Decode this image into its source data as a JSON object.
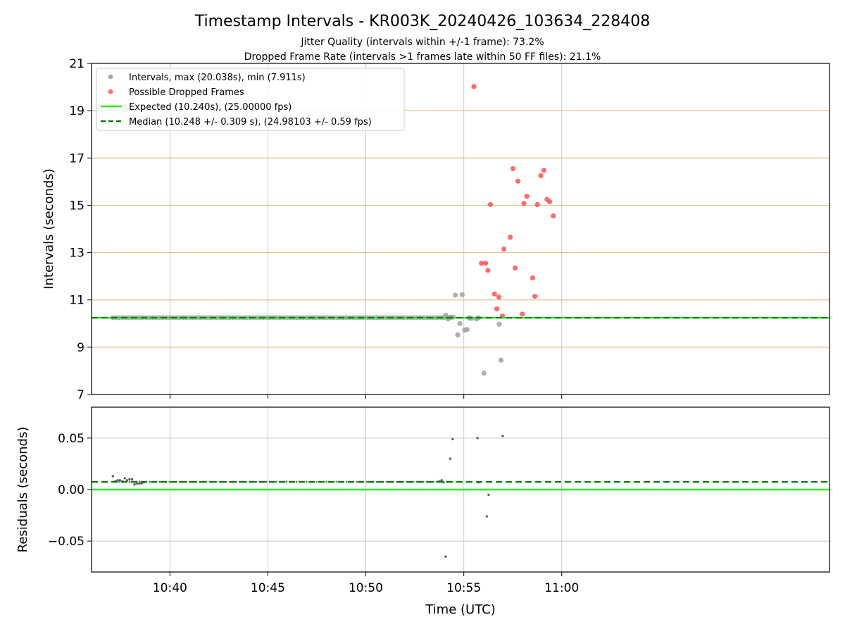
{
  "title": "Timestamp Intervals - KR003K_20240426_103634_228408",
  "subtitle_line1": "Jitter Quality (intervals within +/-1 frame): 73.2%",
  "subtitle_line2": "Dropped Frame Rate (intervals >1 frames late within 50 FF files): 21.1%",
  "colors": {
    "intervals": "#a0a0a0",
    "dropped": "#ff5a5a",
    "expected": "#22ee22",
    "median": "#007a00",
    "hgrid_top": "#d6c68f",
    "grid": "#c8c8c8"
  },
  "chart_data": [
    {
      "type": "scatter",
      "panel": "intervals",
      "ylabel": "Intervals (seconds)",
      "ylim": [
        7,
        21
      ],
      "yticks": [
        7,
        9,
        11,
        13,
        15,
        17,
        19,
        21
      ],
      "xlim": [
        10.6,
        11.2278
      ],
      "xticks": [
        10.6667,
        10.75,
        10.8333,
        10.9167,
        11.0
      ],
      "xtick_labels": [
        "10:40",
        "10:45",
        "10:50",
        "10:55",
        "11:00"
      ],
      "grid": "on",
      "legend_position": "top-left",
      "legend": [
        "Intervals, max (20.038s), min (7.911s)",
        "Possible Dropped Frames",
        "Expected (10.240s), (25.00000 fps)",
        "Median (10.248 +/- 0.309 s), (24.98103 +/- 0.59 fps)"
      ],
      "expected_line": 10.24,
      "median_line": 10.248,
      "regular_series": {
        "name": "Intervals, max (20.038s), min (7.911s)",
        "x_start": 10.6181,
        "x_step": 0.002841,
        "count": 102,
        "value": 10.25
      },
      "gray_points": [
        [
          10.9013,
          10.35
        ],
        [
          10.9033,
          10.2
        ],
        [
          10.9055,
          10.27
        ],
        [
          10.9075,
          10.27
        ],
        [
          10.9095,
          11.2
        ],
        [
          10.9115,
          9.52
        ],
        [
          10.9133,
          10.0
        ],
        [
          10.9153,
          11.22
        ],
        [
          10.9175,
          9.72
        ],
        [
          10.9195,
          9.75
        ],
        [
          10.9212,
          10.24
        ],
        [
          10.9232,
          10.22
        ],
        [
          10.9272,
          10.2
        ],
        [
          10.9292,
          10.24
        ],
        [
          10.9338,
          7.9
        ],
        [
          10.9468,
          9.97
        ],
        [
          10.9483,
          8.45
        ]
      ],
      "dropped_points": [
        [
          10.9253,
          20.02
        ],
        [
          10.9317,
          12.55
        ],
        [
          10.9352,
          12.55
        ],
        [
          10.9372,
          12.25
        ],
        [
          10.9393,
          15.03
        ],
        [
          10.9428,
          11.25
        ],
        [
          10.9448,
          10.62
        ],
        [
          10.9465,
          11.12
        ],
        [
          10.9495,
          10.32
        ],
        [
          10.9508,
          13.15
        ],
        [
          10.9562,
          13.65
        ],
        [
          10.9585,
          16.55
        ],
        [
          10.9603,
          12.35
        ],
        [
          10.9627,
          16.02
        ],
        [
          10.9665,
          10.4
        ],
        [
          10.9678,
          15.08
        ],
        [
          10.9703,
          15.38
        ],
        [
          10.9752,
          11.93
        ],
        [
          10.9772,
          11.15
        ],
        [
          10.9792,
          15.03
        ],
        [
          10.9822,
          16.25
        ],
        [
          10.9848,
          16.48
        ],
        [
          10.9875,
          15.25
        ],
        [
          10.9897,
          15.15
        ],
        [
          10.9928,
          14.55
        ]
      ]
    },
    {
      "type": "scatter",
      "panel": "residuals",
      "xlabel": "Time (UTC)",
      "ylabel": "Residuals (seconds)",
      "ylim": [
        -0.08,
        0.08
      ],
      "yticks": [
        -0.05,
        0.0,
        0.05
      ],
      "ytick_labels": [
        "−0.05",
        "0.00",
        "0.05"
      ],
      "xlim": [
        10.6,
        11.2278
      ],
      "grid": "on",
      "zero_line": 0.0,
      "median_line": 0.0075,
      "regular_series": {
        "x_start": 10.6181,
        "x_step": 0.002841,
        "count": 102,
        "value": 0.0075
      },
      "points": [
        [
          10.6181,
          0.013
        ],
        [
          10.6203,
          0.008
        ],
        [
          10.6222,
          0.009
        ],
        [
          10.6242,
          0.009
        ],
        [
          10.6262,
          0.008
        ],
        [
          10.6283,
          0.011
        ],
        [
          10.6302,
          0.009
        ],
        [
          10.6323,
          0.01
        ],
        [
          10.6345,
          0.01
        ],
        [
          10.6365,
          0.005
        ],
        [
          10.6385,
          0.006
        ],
        [
          10.6405,
          0.006
        ],
        [
          10.6425,
          0.006
        ],
        [
          10.6445,
          0.007
        ],
        [
          10.8958,
          0.008
        ],
        [
          10.8978,
          0.009
        ],
        [
          10.8995,
          0.007
        ],
        [
          10.9013,
          -0.065
        ],
        [
          10.9052,
          0.03
        ],
        [
          10.9072,
          0.049
        ],
        [
          10.9283,
          0.05
        ],
        [
          10.9292,
          0.007
        ],
        [
          10.9363,
          -0.026
        ],
        [
          10.9378,
          -0.005
        ],
        [
          10.9498,
          0.052
        ]
      ]
    }
  ]
}
